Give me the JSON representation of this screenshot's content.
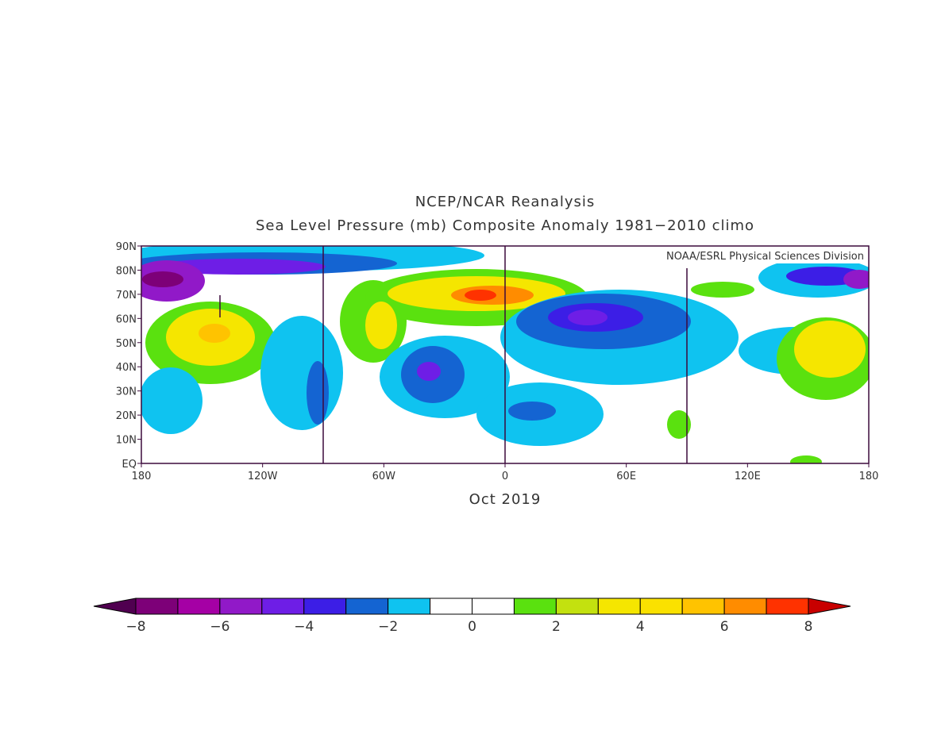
{
  "chart_data": {
    "type": "map",
    "title": "NCEP/NCAR Reanalysis",
    "subtitle": "Sea Level Pressure (mb) Composite Anomaly 1981−2010 climo",
    "credit": "NOAA/ESRL Physical Sciences Division",
    "xlabel": "Oct 2019",
    "xlim": [
      -180,
      180
    ],
    "ylim": [
      0,
      90
    ],
    "xticks": [
      {
        "value": -180,
        "label": "180"
      },
      {
        "value": -120,
        "label": "120W"
      },
      {
        "value": -60,
        "label": "60W"
      },
      {
        "value": 0,
        "label": "0"
      },
      {
        "value": 60,
        "label": "60E"
      },
      {
        "value": 120,
        "label": "120E"
      },
      {
        "value": 180,
        "label": "180"
      }
    ],
    "yticks": [
      {
        "value": 0,
        "label": "EQ"
      },
      {
        "value": 10,
        "label": "10N"
      },
      {
        "value": 20,
        "label": "20N"
      },
      {
        "value": 30,
        "label": "30N"
      },
      {
        "value": 40,
        "label": "40N"
      },
      {
        "value": 50,
        "label": "50N"
      },
      {
        "value": 60,
        "label": "60N"
      },
      {
        "value": 70,
        "label": "70N"
      },
      {
        "value": 80,
        "label": "80N"
      },
      {
        "value": 90,
        "label": "90N"
      }
    ],
    "colorbar": {
      "lim": [
        -8,
        8
      ],
      "colors": [
        "#500050",
        "#7d0078",
        "#a500a5",
        "#9119c8",
        "#6e1ee6",
        "#3c1ee6",
        "#1464d2",
        "#0fc3f0",
        "#ffffff",
        "#ffffff",
        "#5ae10f",
        "#c3e10f",
        "#f5e600",
        "#fae100",
        "#ffc300",
        "#ff8c00",
        "#ff3200",
        "#c80000"
      ],
      "ticks": [
        {
          "value": -8,
          "label": "−8"
        },
        {
          "value": -6,
          "label": "−6"
        },
        {
          "value": -4,
          "label": "−4"
        },
        {
          "value": -2,
          "label": "−2"
        },
        0,
        2,
        4,
        6,
        8
      ]
    }
  }
}
